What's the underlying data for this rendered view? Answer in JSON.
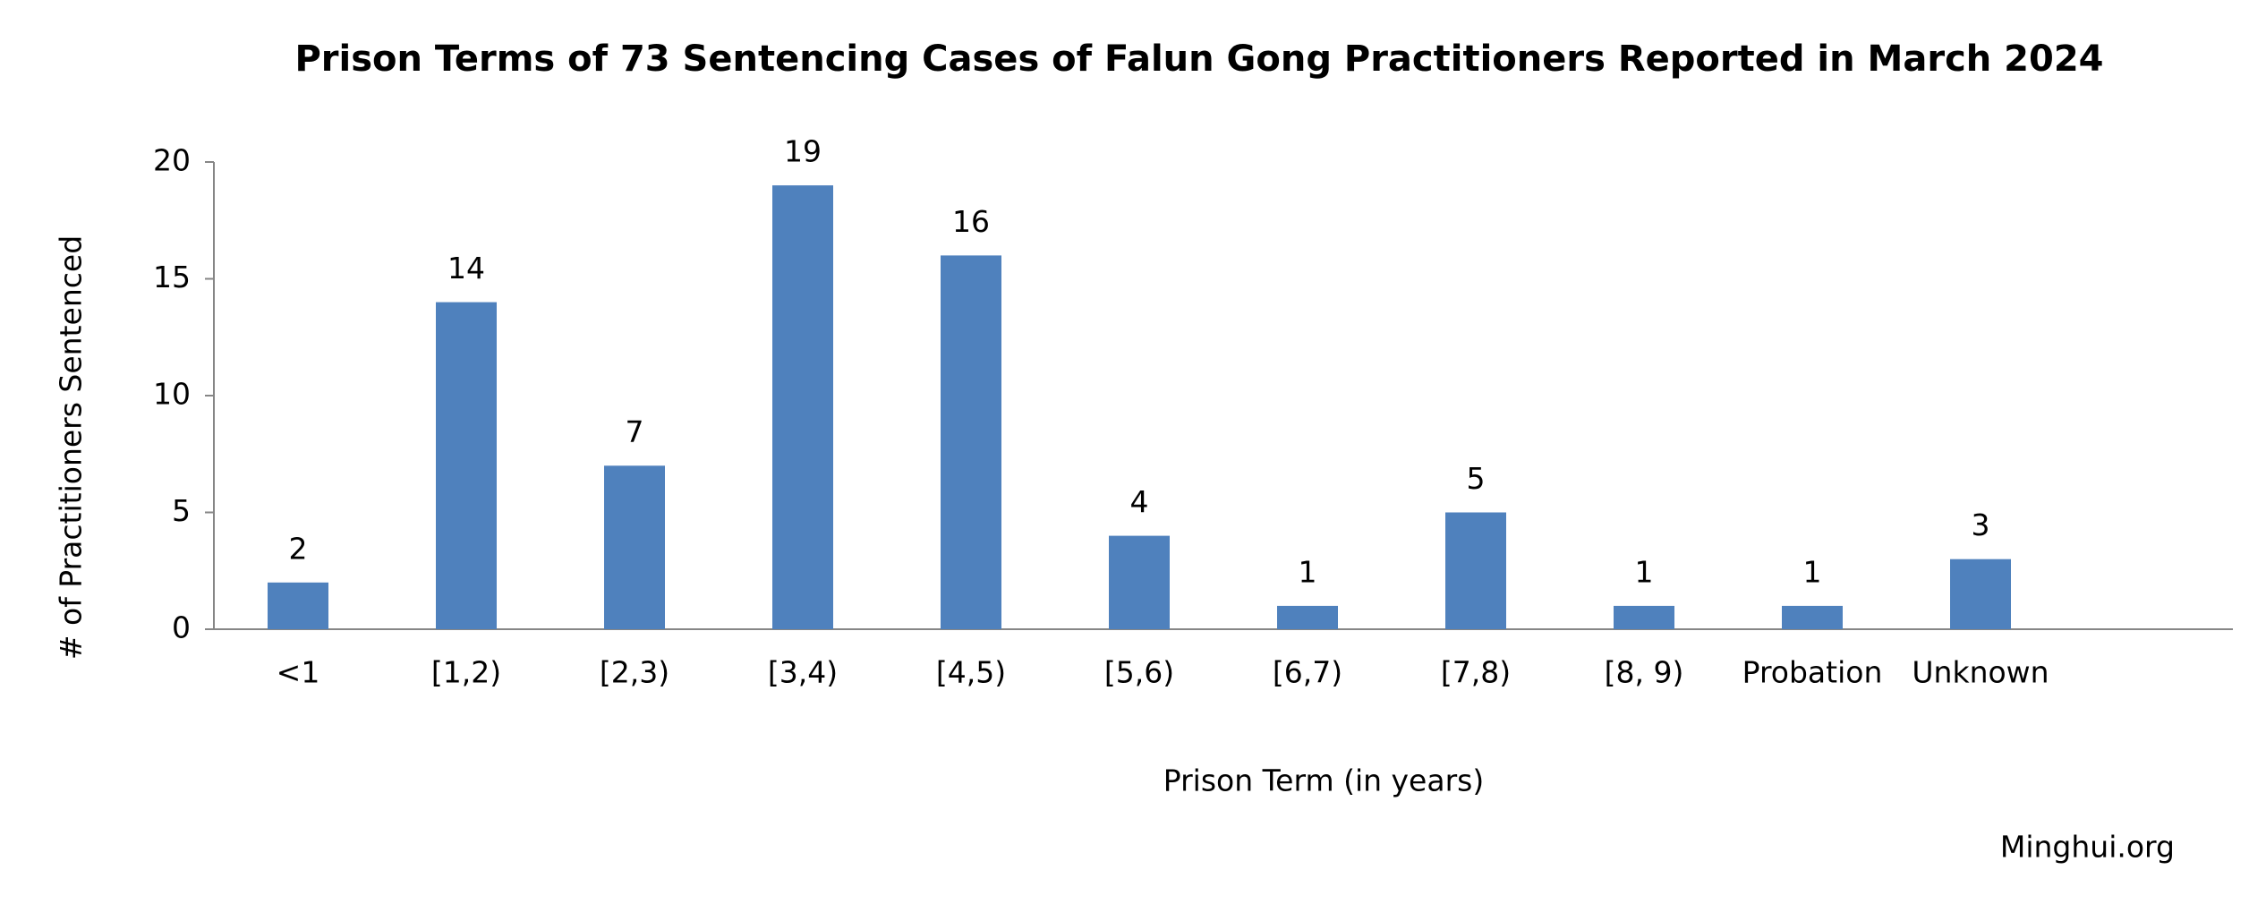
{
  "chart_data": {
    "type": "bar",
    "title": "Prison Terms of 73 Sentencing Cases of Falun Gong Practitioners Reported in March 2024",
    "x_label": "Prison Term (in years)",
    "y_label": "# of Practitioners Sentenced",
    "source": "Minghui.org",
    "categories": [
      "<1",
      "[1,2)",
      "[2,3)",
      "[3,4)",
      "[4,5)",
      "[5,6)",
      "[6,7)",
      "[7,8)",
      "[8, 9)",
      "Probation",
      "Unknown"
    ],
    "values": [
      2,
      14,
      7,
      19,
      16,
      4,
      1,
      5,
      1,
      1,
      3
    ],
    "color": "#4f81bd",
    "ylim": [
      0,
      20
    ],
    "yticks": [
      0,
      5,
      10,
      15,
      20
    ],
    "grid": false,
    "data_labels": true
  }
}
